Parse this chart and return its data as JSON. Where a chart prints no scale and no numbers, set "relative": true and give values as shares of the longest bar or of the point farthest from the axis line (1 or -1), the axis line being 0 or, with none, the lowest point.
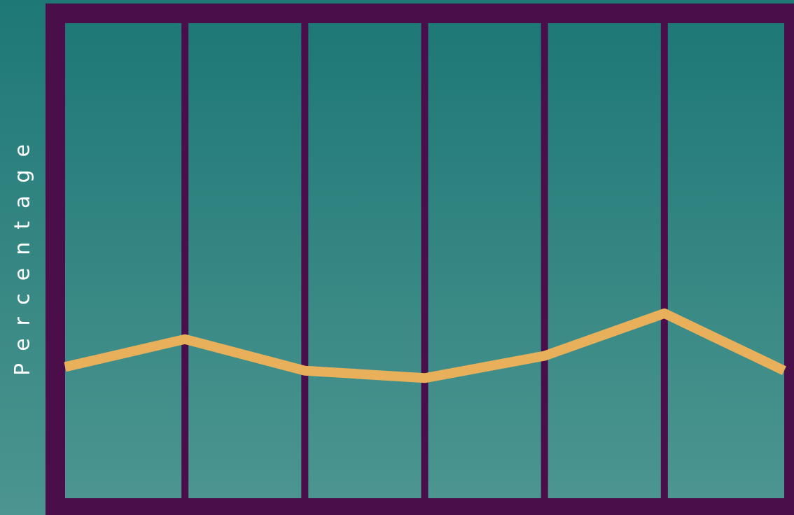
{
  "chart_data": {
    "type": "line",
    "ylabel": "Percentage",
    "relative": true,
    "categories": [
      null,
      null,
      null,
      null,
      null,
      null,
      null
    ],
    "series": [
      {
        "color": "#e8b05a",
        "values": [
          0.71,
          0.86,
          0.69,
          0.65,
          0.77,
          1,
          0.69
        ]
      }
    ],
    "grid": "x",
    "marker": "none",
    "line_style": "solid"
  }
}
